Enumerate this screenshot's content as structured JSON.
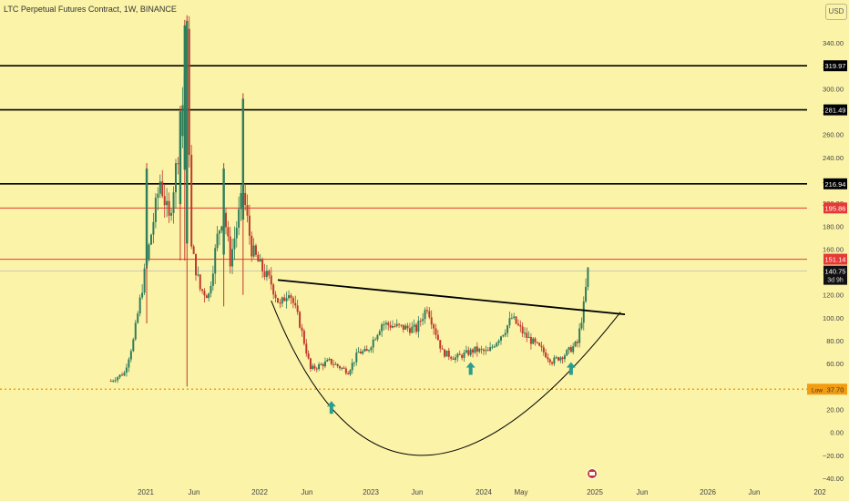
{
  "header": {
    "title": "LTC Perpetual Futures Contract, 1W, BINANCE",
    "currency_button": "USD"
  },
  "colors": {
    "background": "#fbf3a8",
    "up_candle": "#2e7d5b",
    "down_candle": "#c0392b",
    "black_level": "#000000",
    "red_level": "#e53935",
    "low_line": "#f39c12",
    "arrow": "#2a9d8f"
  },
  "chart_data": {
    "type": "candlestick",
    "title": "LTC Perpetual Futures Contract, 1W, BINANCE",
    "y_axis": {
      "unit": "USD",
      "ticks": [
        340,
        320,
        300,
        280,
        260,
        240,
        220,
        200,
        180,
        160,
        140,
        120,
        100,
        80,
        60,
        40,
        20,
        0,
        -20,
        -40
      ],
      "tick_labels": [
        "340.00",
        "320.00",
        "300.00",
        "280.00",
        "260.00",
        "240.00",
        "220.00",
        "200.00",
        "180.00",
        "160.00",
        "140.00",
        "120.00",
        "100.00",
        "80.00",
        "60.00",
        "40.00",
        "20.00",
        "0.00",
        "−20.00",
        "−40.00"
      ],
      "range": [
        -42,
        364
      ]
    },
    "x_axis": {
      "range": [
        "2020-07-15",
        "2026-12-31"
      ],
      "ticks": [
        {
          "date": "2021-01-01",
          "label": "2021"
        },
        {
          "date": "2021-06-01",
          "label": "Jun"
        },
        {
          "date": "2022-01-01",
          "label": "2022"
        },
        {
          "date": "2022-06-01",
          "label": "Jun"
        },
        {
          "date": "2023-01-01",
          "label": "2023"
        },
        {
          "date": "2023-06-01",
          "label": "Jun"
        },
        {
          "date": "2024-01-01",
          "label": "2024"
        },
        {
          "date": "2024-05-01",
          "label": "May"
        },
        {
          "date": "2025-01-01",
          "label": "2025"
        },
        {
          "date": "2025-06-01",
          "label": "Jun"
        },
        {
          "date": "2026-01-01",
          "label": "2026"
        },
        {
          "date": "2026-06-01",
          "label": "Jun"
        },
        {
          "date": "2027-01-01",
          "label": "202"
        }
      ]
    },
    "price_path": [
      [
        "2020-09-14",
        45
      ],
      [
        "2020-10-26",
        52
      ],
      [
        "2020-11-23",
        80
      ],
      [
        "2021-01-04",
        150
      ],
      [
        "2021-02-15",
        220
      ],
      [
        "2021-03-15",
        185
      ],
      [
        "2021-04-19",
        260
      ],
      [
        "2021-05-10",
        340
      ],
      [
        "2021-05-24",
        160
      ],
      [
        "2021-06-21",
        125
      ],
      [
        "2021-07-19",
        120
      ],
      [
        "2021-08-16",
        170
      ],
      [
        "2021-09-06",
        195
      ],
      [
        "2021-09-27",
        150
      ],
      [
        "2021-11-08",
        210
      ],
      [
        "2021-12-06",
        160
      ],
      [
        "2022-01-03",
        145
      ],
      [
        "2022-02-07",
        130
      ],
      [
        "2022-03-07",
        110
      ],
      [
        "2022-04-04",
        125
      ],
      [
        "2022-05-09",
        95
      ],
      [
        "2022-06-13",
        55
      ],
      [
        "2022-08-15",
        62
      ],
      [
        "2022-10-17",
        53
      ],
      [
        "2022-11-21",
        70
      ],
      [
        "2022-12-19",
        70
      ],
      [
        "2023-02-06",
        95
      ],
      [
        "2023-04-03",
        92
      ],
      [
        "2023-05-29",
        90
      ],
      [
        "2023-07-03",
        110
      ],
      [
        "2023-08-21",
        70
      ],
      [
        "2023-10-02",
        65
      ],
      [
        "2023-12-04",
        72
      ],
      [
        "2024-01-15",
        70
      ],
      [
        "2024-03-11",
        90
      ],
      [
        "2024-04-01",
        100
      ],
      [
        "2024-05-13",
        85
      ],
      [
        "2024-07-08",
        72
      ],
      [
        "2024-08-12",
        62
      ],
      [
        "2024-09-23",
        68
      ],
      [
        "2024-11-04",
        78
      ],
      [
        "2024-11-25",
        110
      ],
      [
        "2024-12-02",
        125
      ],
      [
        "2024-12-09",
        140.75
      ]
    ],
    "spikes": [
      [
        "2021-05-10",
        40,
        364
      ],
      [
        "2021-05-03",
        150,
        360
      ],
      [
        "2021-11-08",
        120,
        296
      ],
      [
        "2021-04-19",
        150,
        285
      ],
      [
        "2021-09-06",
        110,
        235
      ],
      [
        "2021-01-04",
        95,
        235
      ]
    ],
    "horizontal_levels": [
      {
        "price": 319.97,
        "label": "319.97",
        "color": "#000000"
      },
      {
        "price": 281.49,
        "label": "281.49",
        "color": "#000000"
      },
      {
        "price": 216.94,
        "label": "216.94",
        "color": "#000000"
      },
      {
        "price": 195.86,
        "label": "195.86",
        "color": "#e53935"
      },
      {
        "price": 151.14,
        "label": "151.14",
        "color": "#e53935"
      }
    ],
    "current_price": {
      "price": 140.75,
      "label": "140.75",
      "time_left": "3d 9h"
    },
    "low_level": {
      "price": 37.7,
      "label": "37.70",
      "tag": "Low"
    },
    "trendline": {
      "start": [
        "2022-02-28",
        133
      ],
      "end": [
        "2025-04-07",
        103
      ]
    },
    "cup_curve": {
      "start": [
        "2022-02-07",
        115
      ],
      "bottom": [
        "2023-06-05",
        -20
      ],
      "end": [
        "2025-03-24",
        105
      ]
    },
    "arrows": [
      {
        "date": "2022-08-22",
        "price": 21
      },
      {
        "date": "2023-11-20",
        "price": 55
      },
      {
        "date": "2024-10-14",
        "price": 55
      }
    ],
    "event_icon_date": "2024-12-23"
  }
}
